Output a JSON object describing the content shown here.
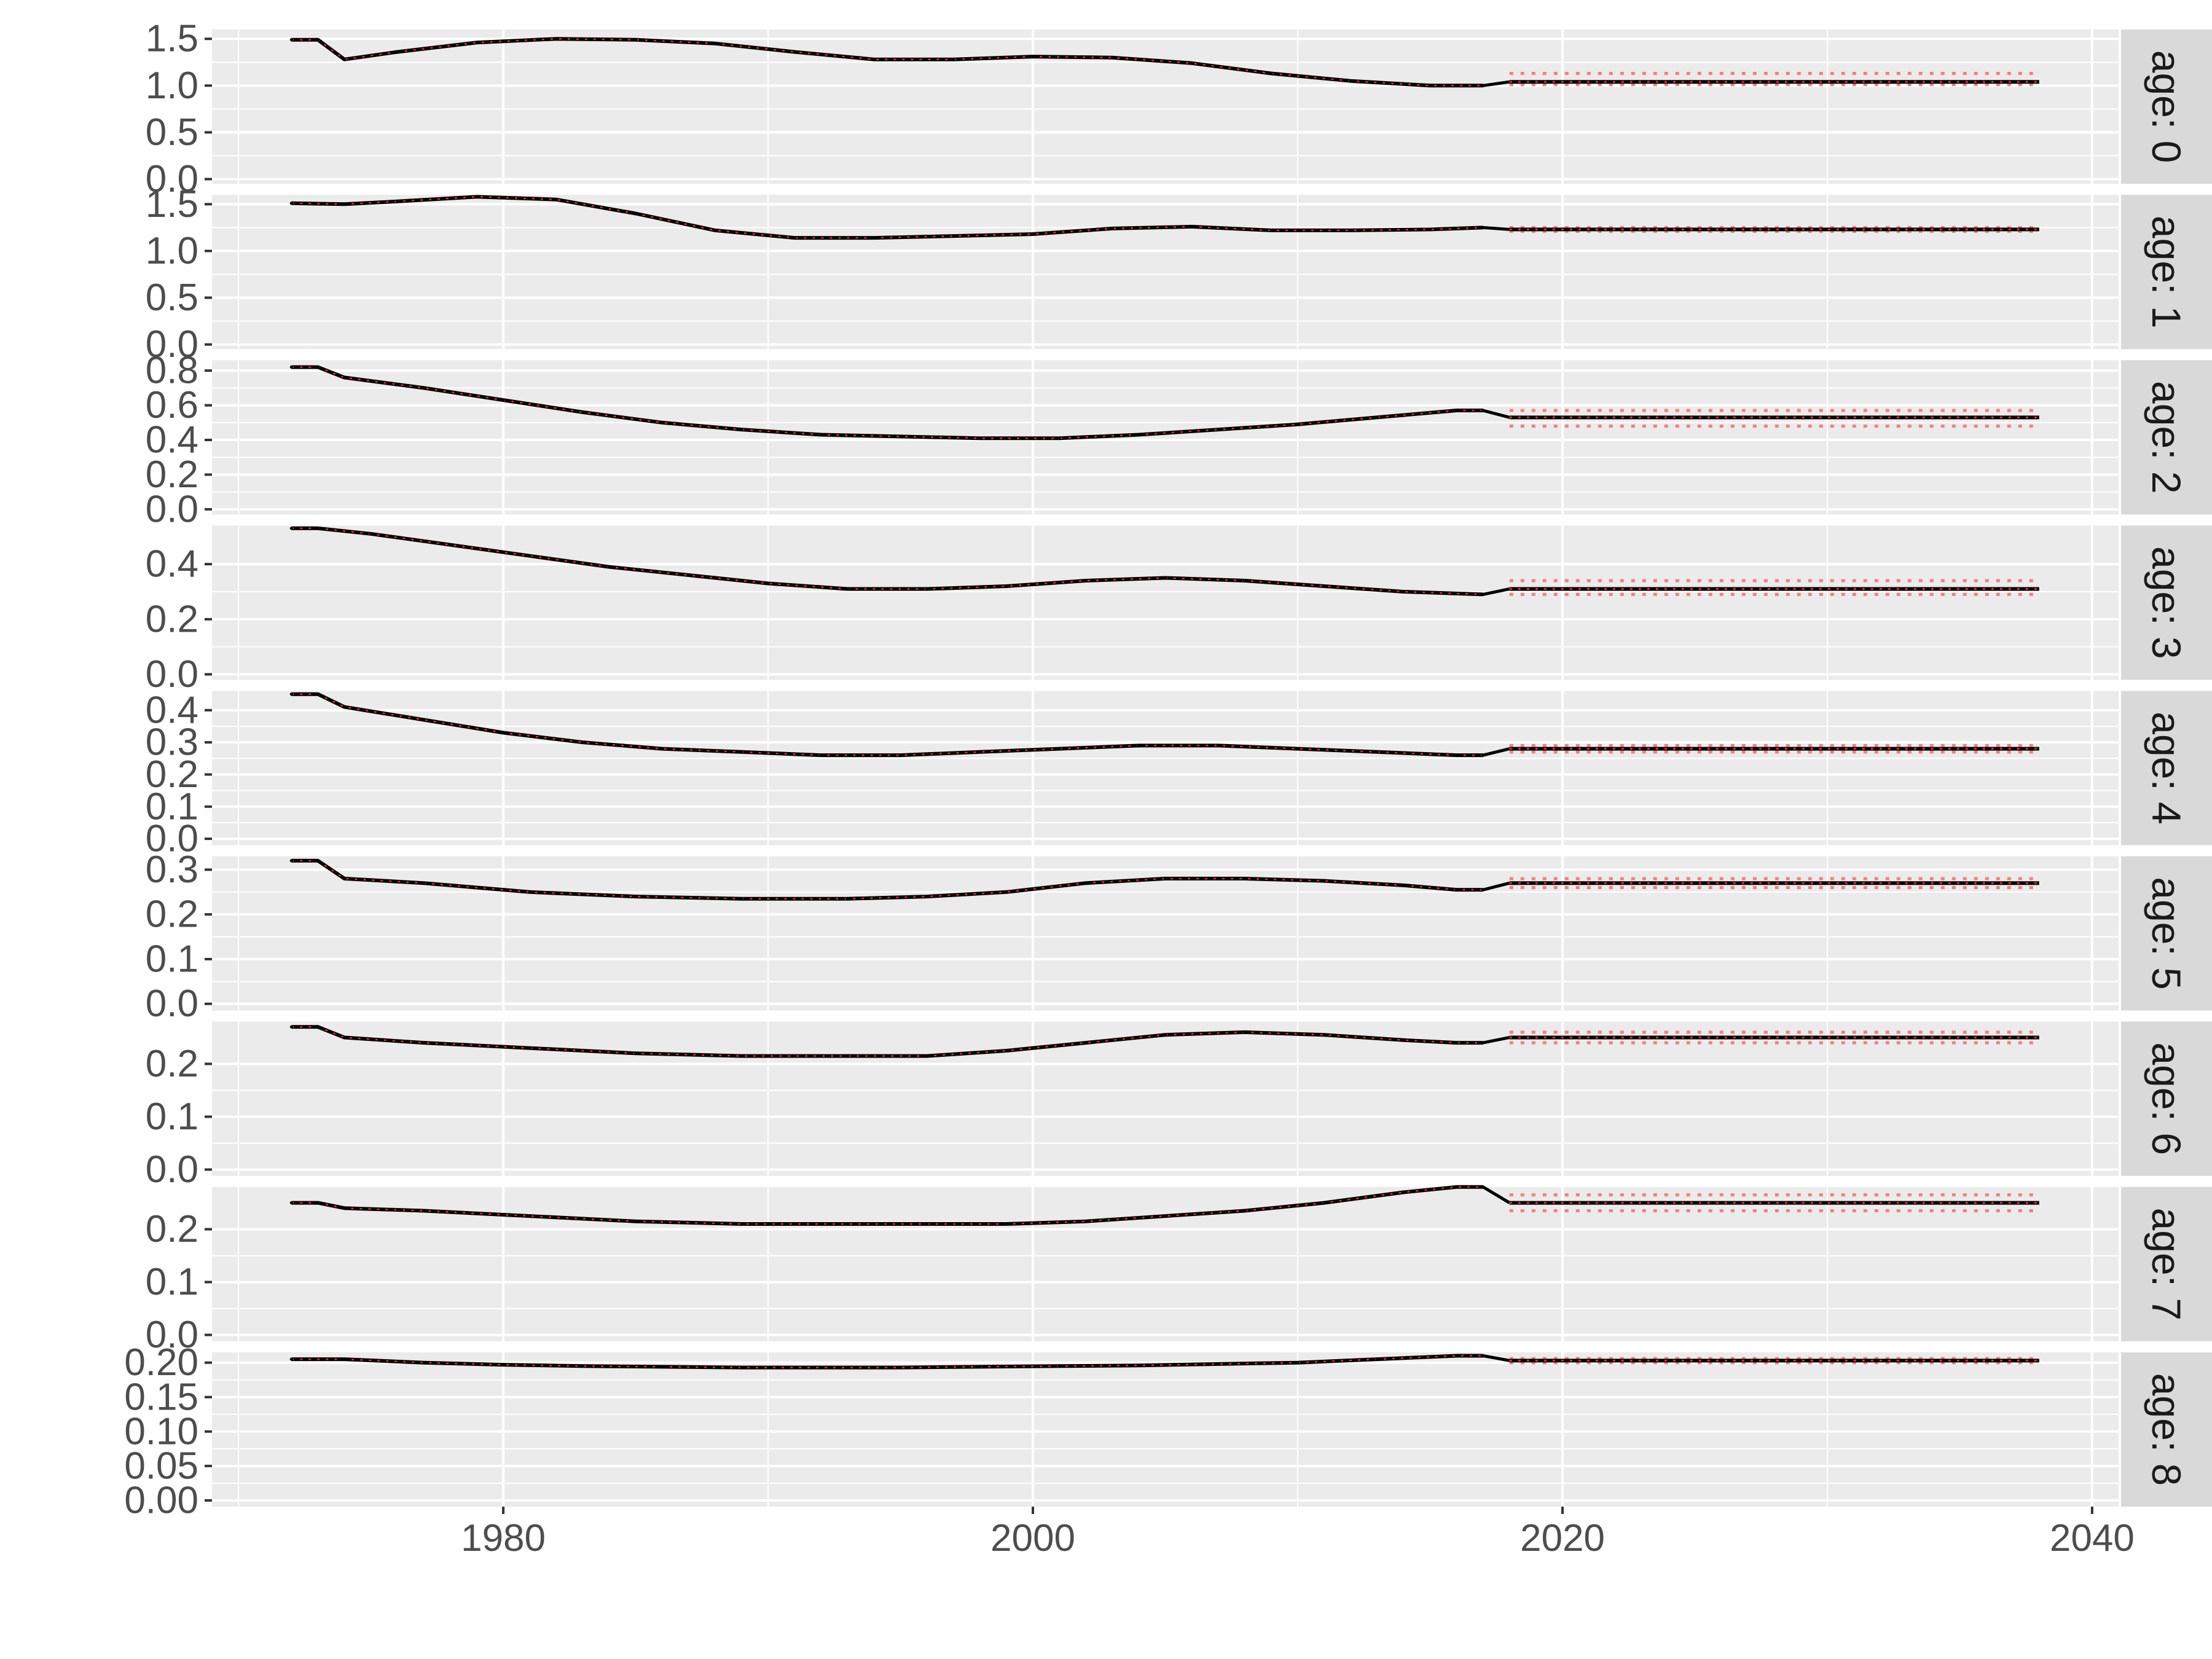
{
  "chart_data": {
    "type": "line",
    "layout": "facet-rows",
    "xlim": [
      1969,
      2041
    ],
    "x_ticks": [
      1980,
      2000,
      2020,
      2040
    ],
    "x_tick_labels": [
      "1980",
      "2000",
      "2020",
      "2040"
    ],
    "grid": true,
    "legend": "none",
    "title": "",
    "xlabel": "",
    "ylabel": "",
    "colors": {
      "panel_bg": "#ebebeb",
      "grid": "#ffffff",
      "strip_bg": "#d9d9d9",
      "series": "#000000",
      "projection_band": "#f08080",
      "projection_median": "#e03030"
    },
    "projection_start": 2018,
    "projection_end": 2038,
    "facets": [
      {
        "strip": "age: 0",
        "ylim": [
          -0.05,
          1.6
        ],
        "y_ticks": [
          0.0,
          0.5,
          1.0,
          1.5
        ],
        "y_tick_labels": [
          "0.0",
          "0.5",
          "1.0",
          "1.5"
        ],
        "x": [
          1972,
          1973,
          1974,
          1976,
          1979,
          1982,
          1985,
          1988,
          1991,
          1994,
          1997,
          2000,
          2003,
          2006,
          2009,
          2012,
          2015,
          2017
        ],
        "values": [
          1.49,
          1.49,
          1.28,
          1.36,
          1.46,
          1.5,
          1.49,
          1.45,
          1.36,
          1.28,
          1.28,
          1.31,
          1.3,
          1.24,
          1.13,
          1.05,
          1.0,
          1.0
        ],
        "projection": {
          "median": 1.04,
          "lower": 1.01,
          "upper": 1.13
        }
      },
      {
        "strip": "age: 1",
        "ylim": [
          -0.05,
          1.6
        ],
        "y_ticks": [
          0.0,
          0.5,
          1.0,
          1.5
        ],
        "y_tick_labels": [
          "0.0",
          "0.5",
          "1.0",
          "1.5"
        ],
        "x": [
          1972,
          1974,
          1976,
          1979,
          1982,
          1985,
          1988,
          1991,
          1994,
          1997,
          2000,
          2003,
          2006,
          2009,
          2012,
          2015,
          2017
        ],
        "values": [
          1.51,
          1.5,
          1.53,
          1.58,
          1.55,
          1.4,
          1.22,
          1.14,
          1.14,
          1.16,
          1.18,
          1.24,
          1.26,
          1.22,
          1.22,
          1.23,
          1.25
        ],
        "projection": {
          "median": 1.23,
          "lower": 1.21,
          "upper": 1.25
        }
      },
      {
        "strip": "age: 2",
        "ylim": [
          -0.03,
          0.86
        ],
        "y_ticks": [
          0.0,
          0.2,
          0.4,
          0.6,
          0.8
        ],
        "y_tick_labels": [
          "0.0",
          "0.2",
          "0.4",
          "0.6",
          "0.8"
        ],
        "x": [
          1972,
          1973,
          1974,
          1977,
          1980,
          1983,
          1986,
          1989,
          1992,
          1995,
          1998,
          2001,
          2004,
          2007,
          2010,
          2013,
          2016,
          2017
        ],
        "values": [
          0.82,
          0.82,
          0.76,
          0.7,
          0.63,
          0.56,
          0.5,
          0.46,
          0.43,
          0.42,
          0.41,
          0.41,
          0.43,
          0.46,
          0.49,
          0.53,
          0.57,
          0.57
        ],
        "projection": {
          "median": 0.53,
          "lower": 0.48,
          "upper": 0.57
        }
      },
      {
        "strip": "age: 3",
        "ylim": [
          -0.02,
          0.54
        ],
        "y_ticks": [
          0.0,
          0.2,
          0.4
        ],
        "y_tick_labels": [
          "0.0",
          "0.2",
          "0.4"
        ],
        "x": [
          1972,
          1973,
          1975,
          1978,
          1981,
          1984,
          1987,
          1990,
          1993,
          1996,
          1999,
          2002,
          2005,
          2008,
          2011,
          2014,
          2017
        ],
        "values": [
          0.53,
          0.53,
          0.51,
          0.47,
          0.43,
          0.39,
          0.36,
          0.33,
          0.31,
          0.31,
          0.32,
          0.34,
          0.35,
          0.34,
          0.32,
          0.3,
          0.29
        ],
        "projection": {
          "median": 0.31,
          "lower": 0.29,
          "upper": 0.34
        }
      },
      {
        "strip": "age: 4",
        "ylim": [
          -0.02,
          0.46
        ],
        "y_ticks": [
          0.0,
          0.1,
          0.2,
          0.3,
          0.4
        ],
        "y_tick_labels": [
          "0.0",
          "0.1",
          "0.2",
          "0.3",
          "0.4"
        ],
        "x": [
          1972,
          1973,
          1974,
          1977,
          1980,
          1983,
          1986,
          1989,
          1992,
          1995,
          1998,
          2001,
          2004,
          2007,
          2010,
          2013,
          2016,
          2017
        ],
        "values": [
          0.45,
          0.45,
          0.41,
          0.37,
          0.33,
          0.3,
          0.28,
          0.27,
          0.26,
          0.26,
          0.27,
          0.28,
          0.29,
          0.29,
          0.28,
          0.27,
          0.26,
          0.26
        ],
        "projection": {
          "median": 0.28,
          "lower": 0.27,
          "upper": 0.29
        }
      },
      {
        "strip": "age: 5",
        "ylim": [
          -0.015,
          0.33
        ],
        "y_ticks": [
          0.0,
          0.1,
          0.2,
          0.3
        ],
        "y_tick_labels": [
          "0.0",
          "0.1",
          "0.2",
          "0.3"
        ],
        "x": [
          1972,
          1973,
          1974,
          1977,
          1981,
          1985,
          1989,
          1993,
          1996,
          1999,
          2002,
          2005,
          2008,
          2011,
          2014,
          2016,
          2017
        ],
        "values": [
          0.32,
          0.32,
          0.28,
          0.27,
          0.25,
          0.24,
          0.235,
          0.235,
          0.24,
          0.25,
          0.27,
          0.28,
          0.28,
          0.275,
          0.265,
          0.255,
          0.255
        ],
        "projection": {
          "median": 0.27,
          "lower": 0.26,
          "upper": 0.28
        }
      },
      {
        "strip": "age: 6",
        "ylim": [
          -0.012,
          0.28
        ],
        "y_ticks": [
          0.0,
          0.1,
          0.2
        ],
        "y_tick_labels": [
          "0.0",
          "0.1",
          "0.2"
        ],
        "x": [
          1972,
          1973,
          1974,
          1977,
          1981,
          1985,
          1989,
          1993,
          1996,
          1999,
          2002,
          2005,
          2008,
          2011,
          2014,
          2016,
          2017
        ],
        "values": [
          0.27,
          0.27,
          0.25,
          0.24,
          0.23,
          0.22,
          0.215,
          0.215,
          0.215,
          0.225,
          0.24,
          0.255,
          0.26,
          0.255,
          0.245,
          0.24,
          0.24
        ],
        "projection": {
          "median": 0.25,
          "lower": 0.24,
          "upper": 0.26
        }
      },
      {
        "strip": "age: 7",
        "ylim": [
          -0.012,
          0.28
        ],
        "y_ticks": [
          0.0,
          0.1,
          0.2
        ],
        "y_tick_labels": [
          "0.0",
          "0.1",
          "0.2"
        ],
        "x": [
          1972,
          1973,
          1974,
          1977,
          1981,
          1985,
          1989,
          1993,
          1996,
          1999,
          2002,
          2005,
          2008,
          2011,
          2014,
          2016,
          2017
        ],
        "values": [
          0.25,
          0.25,
          0.24,
          0.235,
          0.225,
          0.215,
          0.21,
          0.21,
          0.21,
          0.21,
          0.215,
          0.225,
          0.235,
          0.25,
          0.27,
          0.28,
          0.28
        ],
        "projection": {
          "median": 0.25,
          "lower": 0.235,
          "upper": 0.265
        }
      },
      {
        "strip": "age: 8",
        "ylim": [
          -0.009,
          0.215
        ],
        "y_ticks": [
          0.0,
          0.05,
          0.1,
          0.15,
          0.2
        ],
        "y_tick_labels": [
          "0.00",
          "0.05",
          "0.10",
          "0.15",
          "0.20"
        ],
        "x": [
          1972,
          1974,
          1977,
          1980,
          1983,
          1986,
          1989,
          1992,
          1995,
          1998,
          2001,
          2004,
          2007,
          2010,
          2013,
          2016,
          2017
        ],
        "values": [
          0.205,
          0.205,
          0.2,
          0.197,
          0.195,
          0.194,
          0.193,
          0.193,
          0.193,
          0.194,
          0.195,
          0.196,
          0.198,
          0.2,
          0.205,
          0.21,
          0.21
        ],
        "projection": {
          "median": 0.203,
          "lower": 0.2,
          "upper": 0.206
        }
      }
    ]
  }
}
